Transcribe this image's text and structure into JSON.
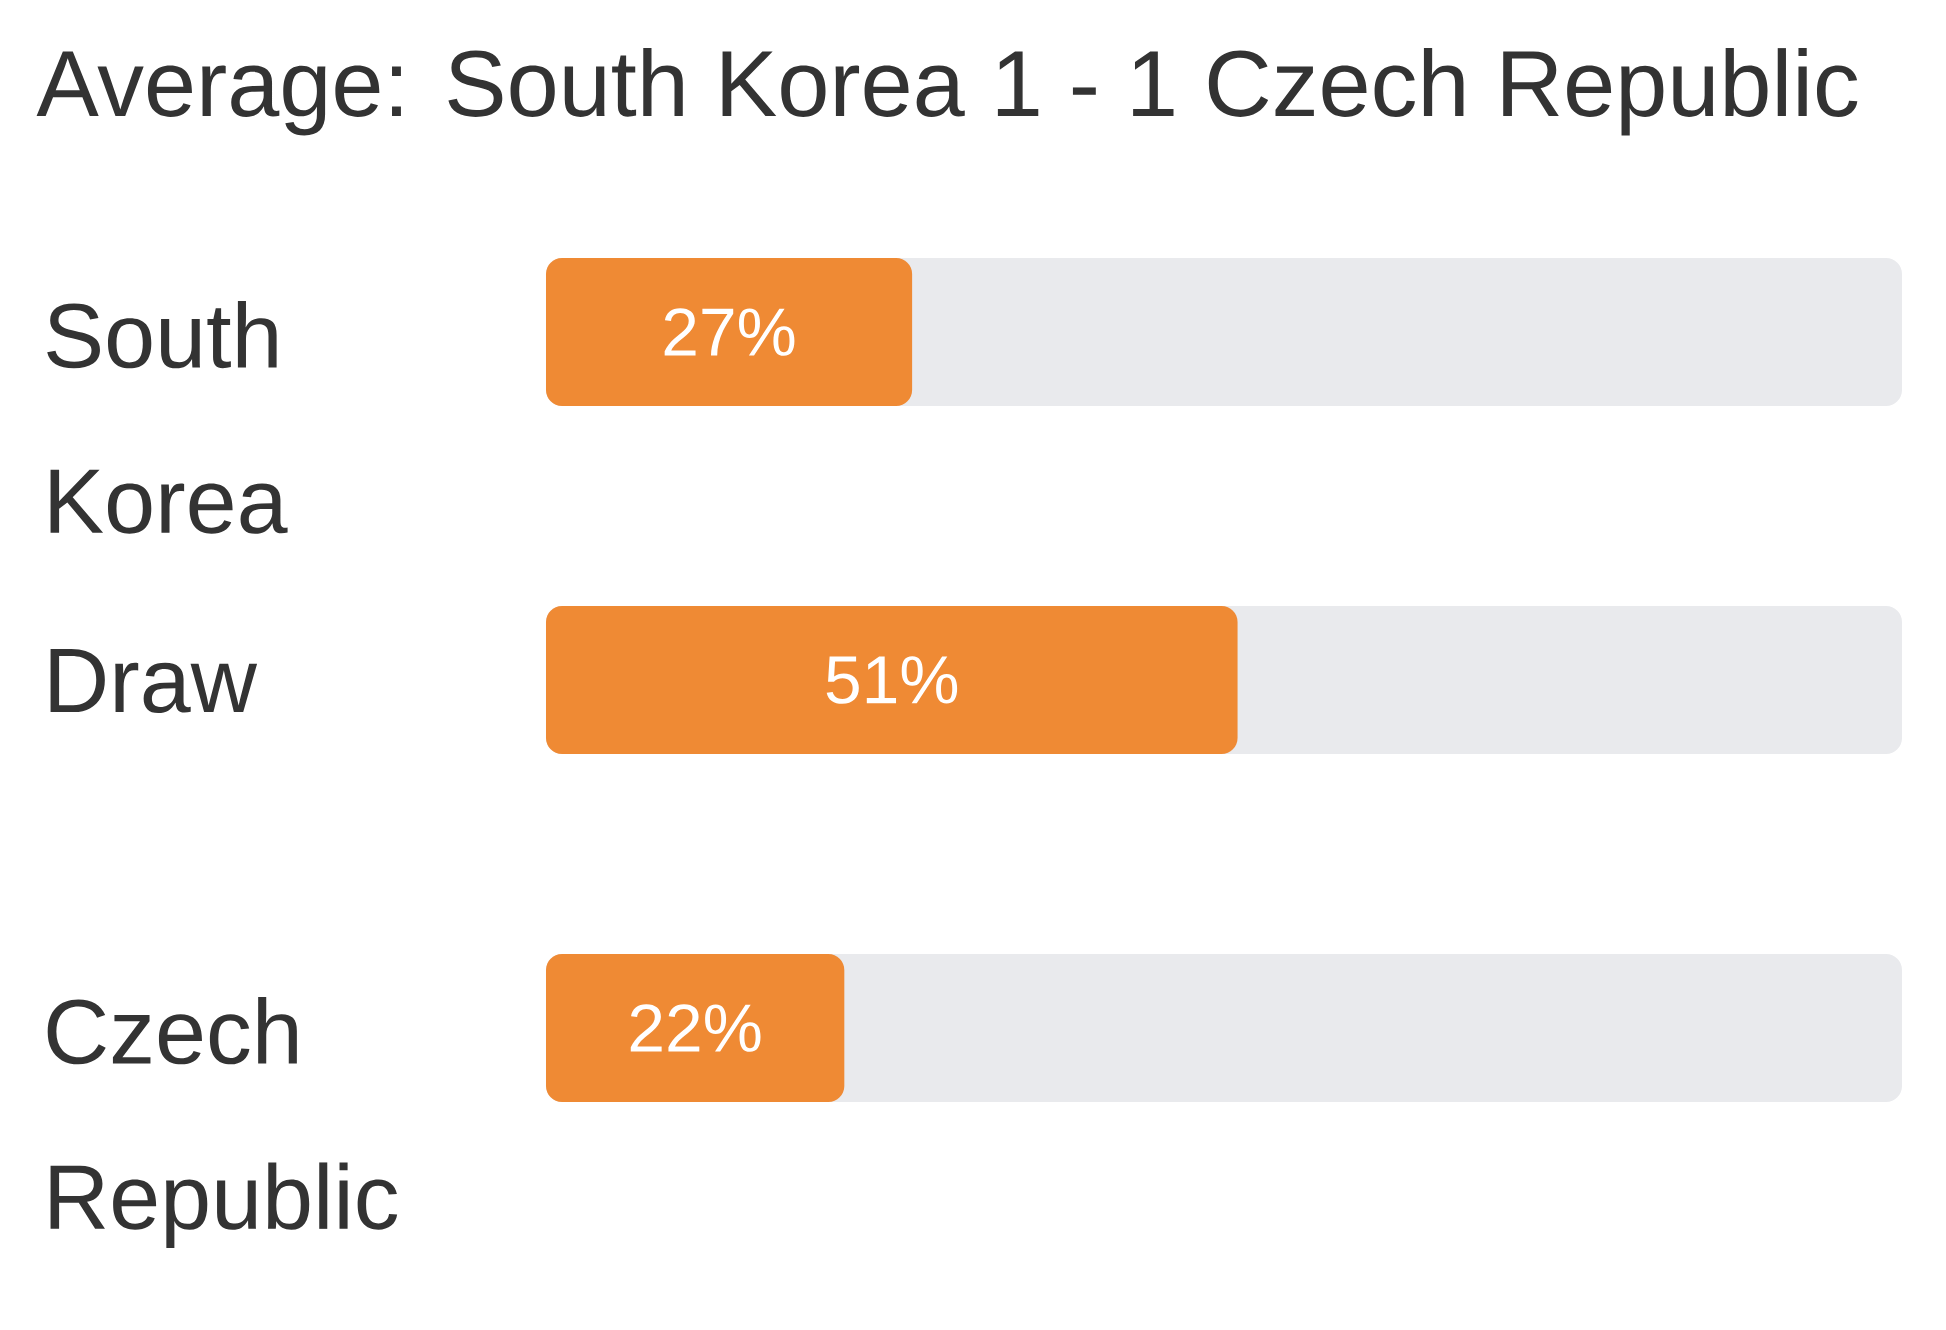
{
  "chart_data": {
    "type": "bar",
    "orientation": "horizontal",
    "title": "Average: South Korea 1 - 1 Czech Republic",
    "categories": [
      "South Korea",
      "Draw",
      "Czech Republic"
    ],
    "values": [
      27,
      51,
      22
    ],
    "value_labels": [
      "27%",
      "51%",
      "22%"
    ],
    "color": "#ef8a34",
    "xlim": [
      0,
      100
    ]
  }
}
